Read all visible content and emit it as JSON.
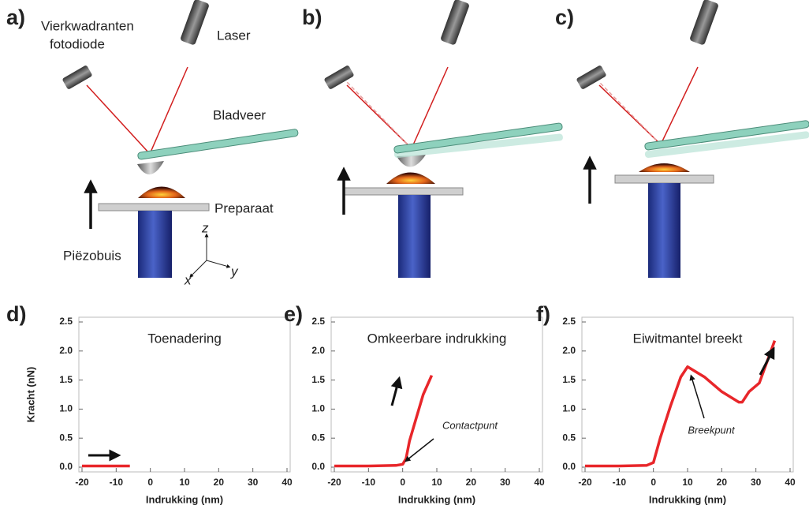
{
  "diagram": {
    "panels": [
      "a)",
      "b)",
      "c)"
    ],
    "photodiode": [
      "Vierkwadranten",
      "fotodiode"
    ],
    "laser": "Laser",
    "cantilever": "Bladveer",
    "sample": "Preparaat",
    "piezo": "Piëzobuis",
    "axes": [
      "z",
      "x",
      "y"
    ]
  },
  "chart_data": [
    {
      "type": "line",
      "panel": "d)",
      "title": "Toenadering",
      "ylabel": "Kracht (nN)",
      "xlabel": "Indrukking (nm)",
      "x": [
        -20,
        -15,
        -10,
        -6
      ],
      "series": [
        {
          "color": "#e8262a",
          "values": [
            0.02,
            0.02,
            0.02,
            0.02
          ]
        }
      ],
      "xlim": [
        -20,
        40
      ],
      "xticks": [
        -20,
        -10,
        0,
        10,
        20,
        30,
        40
      ],
      "ylim": [
        0,
        2.5
      ],
      "yticks": [
        {
          "value": 0,
          "label": "0.0"
        },
        0.5,
        {
          "value": 1,
          "label": "1.0"
        },
        1.5,
        {
          "value": 2,
          "label": "2.0"
        },
        2.5
      ]
    },
    {
      "type": "line",
      "panel": "e)",
      "title": "Omkeerbare indrukking",
      "xlabel": "Indrukking (nm)",
      "annotation": "Contactpunt",
      "x": [
        -20,
        -10,
        -2,
        0,
        1,
        2,
        4,
        6,
        8.5
      ],
      "series": [
        {
          "color": "#e8262a",
          "values": [
            0.02,
            0.02,
            0.03,
            0.05,
            0.15,
            0.45,
            0.85,
            1.25,
            1.58
          ]
        }
      ],
      "xlim": [
        -20,
        40
      ],
      "xticks": [
        -20,
        -10,
        0,
        10,
        20,
        30,
        40
      ],
      "ylim": [
        0,
        2.5
      ],
      "yticks": [
        {
          "value": 0,
          "label": "0.0"
        },
        0.5,
        {
          "value": 1,
          "label": "1.0"
        },
        1.5,
        {
          "value": 2,
          "label": "2.0"
        },
        2.5
      ]
    },
    {
      "type": "line",
      "panel": "f)",
      "title": "Eiwitmantel breekt",
      "xlabel": "Indrukking (nm)",
      "annotation": "Breekpunt",
      "x": [
        -20,
        -10,
        -2,
        0,
        2,
        5,
        8,
        10,
        15,
        20,
        25,
        26,
        28,
        31,
        35.5
      ],
      "series": [
        {
          "color": "#e8262a",
          "values": [
            0.02,
            0.02,
            0.03,
            0.08,
            0.5,
            1.05,
            1.55,
            1.73,
            1.55,
            1.3,
            1.12,
            1.12,
            1.3,
            1.45,
            2.18
          ]
        }
      ],
      "xlim": [
        -20,
        40
      ],
      "xticks": [
        -20,
        -10,
        0,
        10,
        20,
        30,
        40
      ],
      "ylim": [
        0,
        2.5
      ],
      "yticks": [
        {
          "value": 0,
          "label": "0.0"
        },
        0.5,
        {
          "value": 1,
          "label": "1.0"
        },
        1.5,
        {
          "value": 2,
          "label": "2.0"
        },
        2.5
      ]
    }
  ]
}
